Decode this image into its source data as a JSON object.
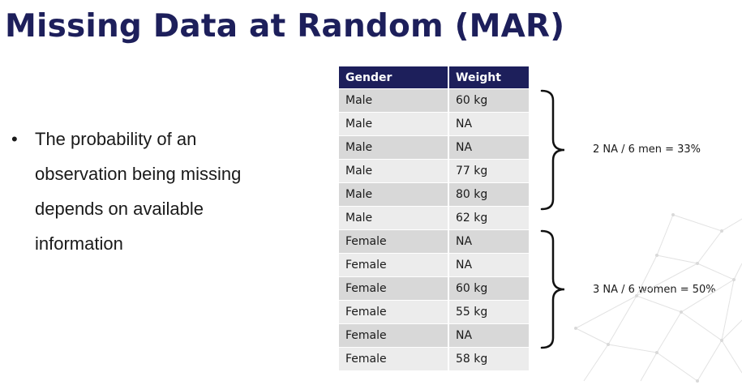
{
  "slide": {
    "title": "Missing Data at Random (MAR)",
    "bullet_marker": "•",
    "bullet_text": "The probability of an observation being missing depends on available information"
  },
  "table": {
    "headers": [
      "Gender",
      "Weight"
    ],
    "rows": [
      [
        "Male",
        "60 kg"
      ],
      [
        "Male",
        "NA"
      ],
      [
        "Male",
        "NA"
      ],
      [
        "Male",
        "77 kg"
      ],
      [
        "Male",
        "80 kg"
      ],
      [
        "Male",
        "62 kg"
      ],
      [
        "Female",
        "NA"
      ],
      [
        "Female",
        "NA"
      ],
      [
        "Female",
        "60 kg"
      ],
      [
        "Female",
        "55 kg"
      ],
      [
        "Female",
        "NA"
      ],
      [
        "Female",
        "58 kg"
      ]
    ]
  },
  "annotations": {
    "men": "2 NA / 6 men = 33%",
    "women": "3 NA / 6 women = 50%"
  },
  "colors": {
    "title": "#1d1f5b",
    "header_bg": "#1d1f5b",
    "row_dark": "#d8d8d8",
    "row_light": "#ececec"
  }
}
